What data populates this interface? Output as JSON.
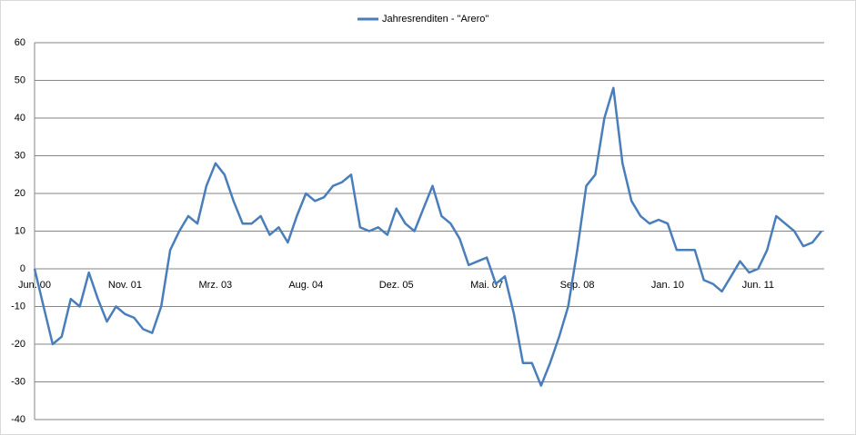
{
  "chart_data": {
    "type": "line",
    "categories": [
      "Jun. 00",
      null,
      null,
      null,
      null,
      null,
      null,
      null,
      null,
      null,
      "Nov. 01",
      null,
      null,
      null,
      null,
      null,
      null,
      null,
      null,
      null,
      "Mrz. 03",
      null,
      null,
      null,
      null,
      null,
      null,
      null,
      null,
      null,
      "Aug. 04",
      null,
      null,
      null,
      null,
      null,
      null,
      null,
      null,
      null,
      "Dez. 05",
      null,
      null,
      null,
      null,
      null,
      null,
      null,
      null,
      null,
      "Mai. 07",
      null,
      null,
      null,
      null,
      null,
      null,
      null,
      null,
      null,
      "Sep. 08",
      null,
      null,
      null,
      null,
      null,
      null,
      null,
      null,
      null,
      "Jan. 10",
      null,
      null,
      null,
      null,
      null,
      null,
      null,
      null,
      null,
      "Jun. 11",
      null,
      null,
      null,
      null,
      null,
      null,
      null
    ],
    "series": [
      {
        "name": "Jahresrenditen - \"Arero\"",
        "color": "#4a7ebb",
        "values": [
          0,
          -10,
          -20,
          -18,
          -8,
          -10,
          -1,
          -8,
          -14,
          -10,
          -12,
          -13,
          -16,
          -17,
          -10,
          5,
          10,
          14,
          12,
          22,
          28,
          25,
          18,
          12,
          12,
          14,
          9,
          11,
          7,
          14,
          20,
          18,
          19,
          22,
          23,
          25,
          11,
          10,
          11,
          9,
          16,
          12,
          10,
          16,
          22,
          14,
          12,
          8,
          1,
          2,
          3,
          -4,
          -2,
          -12,
          -25,
          -25,
          -31,
          -25,
          -18,
          -10,
          5,
          22,
          25,
          40,
          48,
          28,
          18,
          14,
          12,
          13,
          12,
          5,
          5,
          5,
          -3,
          -4,
          -6,
          -2,
          2,
          -1,
          0,
          5,
          14,
          12,
          10,
          6,
          7,
          10
        ]
      }
    ],
    "ylim": [
      -40,
      60
    ],
    "yticks": [
      -40,
      -30,
      -20,
      -10,
      0,
      10,
      20,
      30,
      40,
      50,
      60
    ],
    "grid": true,
    "legend": "top"
  }
}
